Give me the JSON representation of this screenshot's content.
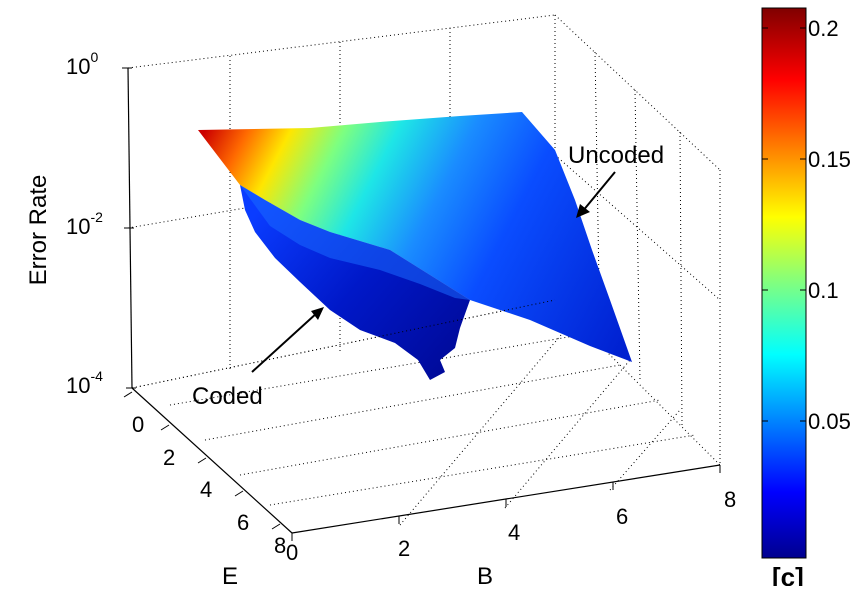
{
  "chart_data": {
    "type": "surface3d",
    "title": "",
    "zlabel": "Error Rate",
    "xlabel": "E",
    "ylabel": "B",
    "z_scale": "log",
    "zlim": [
      0.0001,
      1
    ],
    "z_ticks": [
      {
        "base": "10",
        "exp": "0"
      },
      {
        "base": "10",
        "exp": "-2"
      },
      {
        "base": "10",
        "exp": "-4"
      }
    ],
    "e_ticks": [
      "0",
      "2",
      "4",
      "6",
      "8"
    ],
    "b_ticks": [
      "0",
      "2",
      "4",
      "6",
      "8"
    ],
    "grid": true,
    "colorbar": {
      "ticks": [
        "0.2",
        "0.15",
        "0.1",
        "0.05"
      ],
      "range": [
        0,
        0.21
      ],
      "colormap": "jet"
    },
    "annotations": [
      {
        "text": "Uncoded"
      },
      {
        "text": "Coded"
      }
    ],
    "series": [
      {
        "name": "Uncoded",
        "surface_corners": {
          "e0_b0": 0.2,
          "e0_b8": 0.1,
          "e8_b0": 0.02,
          "e8_b8": 0.0002
        }
      },
      {
        "name": "Coded",
        "surface_corners": {
          "e0_b0": 0.2,
          "e8_b0": 0.001,
          "e8_b4": 0.0001
        }
      }
    ],
    "corner_mark": "[c]"
  },
  "colors": {
    "axis": "#000000",
    "grid": "#000000",
    "background": "#ffffff"
  }
}
